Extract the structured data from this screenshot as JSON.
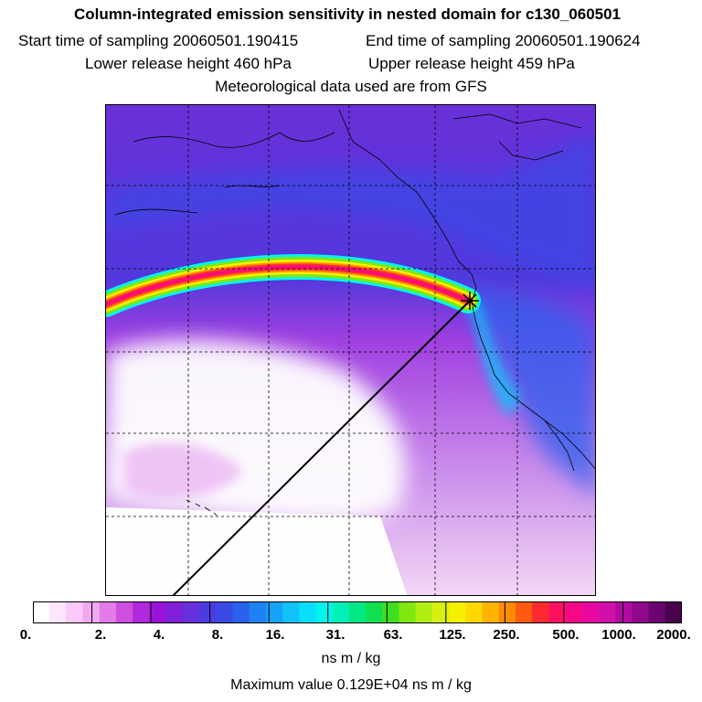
{
  "header": {
    "title": "Column-integrated emission sensitivity in nested domain for c130_060501",
    "start_time": "Start time of sampling 20060501.190415",
    "end_time": "End time of sampling 20060501.190624",
    "lower_height": "Lower release height  460 hPa",
    "upper_height": "Upper release height  459 hPa",
    "met_data": "Meteorological data used are from GFS"
  },
  "legend": {
    "tick_labels": [
      "0.",
      "2.",
      "4.",
      "8.",
      "16.",
      "31.",
      "63.",
      "125.",
      "250.",
      "500.",
      "1000.",
      "2000."
    ],
    "colors": [
      "#ffffff",
      "#fde6fd",
      "#f9c9f9",
      "#f0a8f2",
      "#e07be8",
      "#cc4fe0",
      "#b228dc",
      "#9a12d8",
      "#8020d8",
      "#6630dc",
      "#4c3ce0",
      "#3a4ae6",
      "#2a62ee",
      "#1e82f4",
      "#16a2f8",
      "#10c2fa",
      "#08e0fa",
      "#00f4ee",
      "#00f0b8",
      "#00e884",
      "#10e050",
      "#40e020",
      "#80e810",
      "#b0ee10",
      "#d8f010",
      "#f4f000",
      "#ffd800",
      "#ffb400",
      "#ff8c00",
      "#ff5a10",
      "#ff2a30",
      "#ff1060",
      "#f80888",
      "#e808a0",
      "#d010a8",
      "#b00aa0",
      "#90088c",
      "#6a0470",
      "#48024e"
    ],
    "units": "ns m / kg",
    "max_value": "Maximum value  0.129E+04 ns m / kg"
  },
  "map": {
    "icons": [
      "release-point-marker",
      "trajectory-line"
    ]
  }
}
